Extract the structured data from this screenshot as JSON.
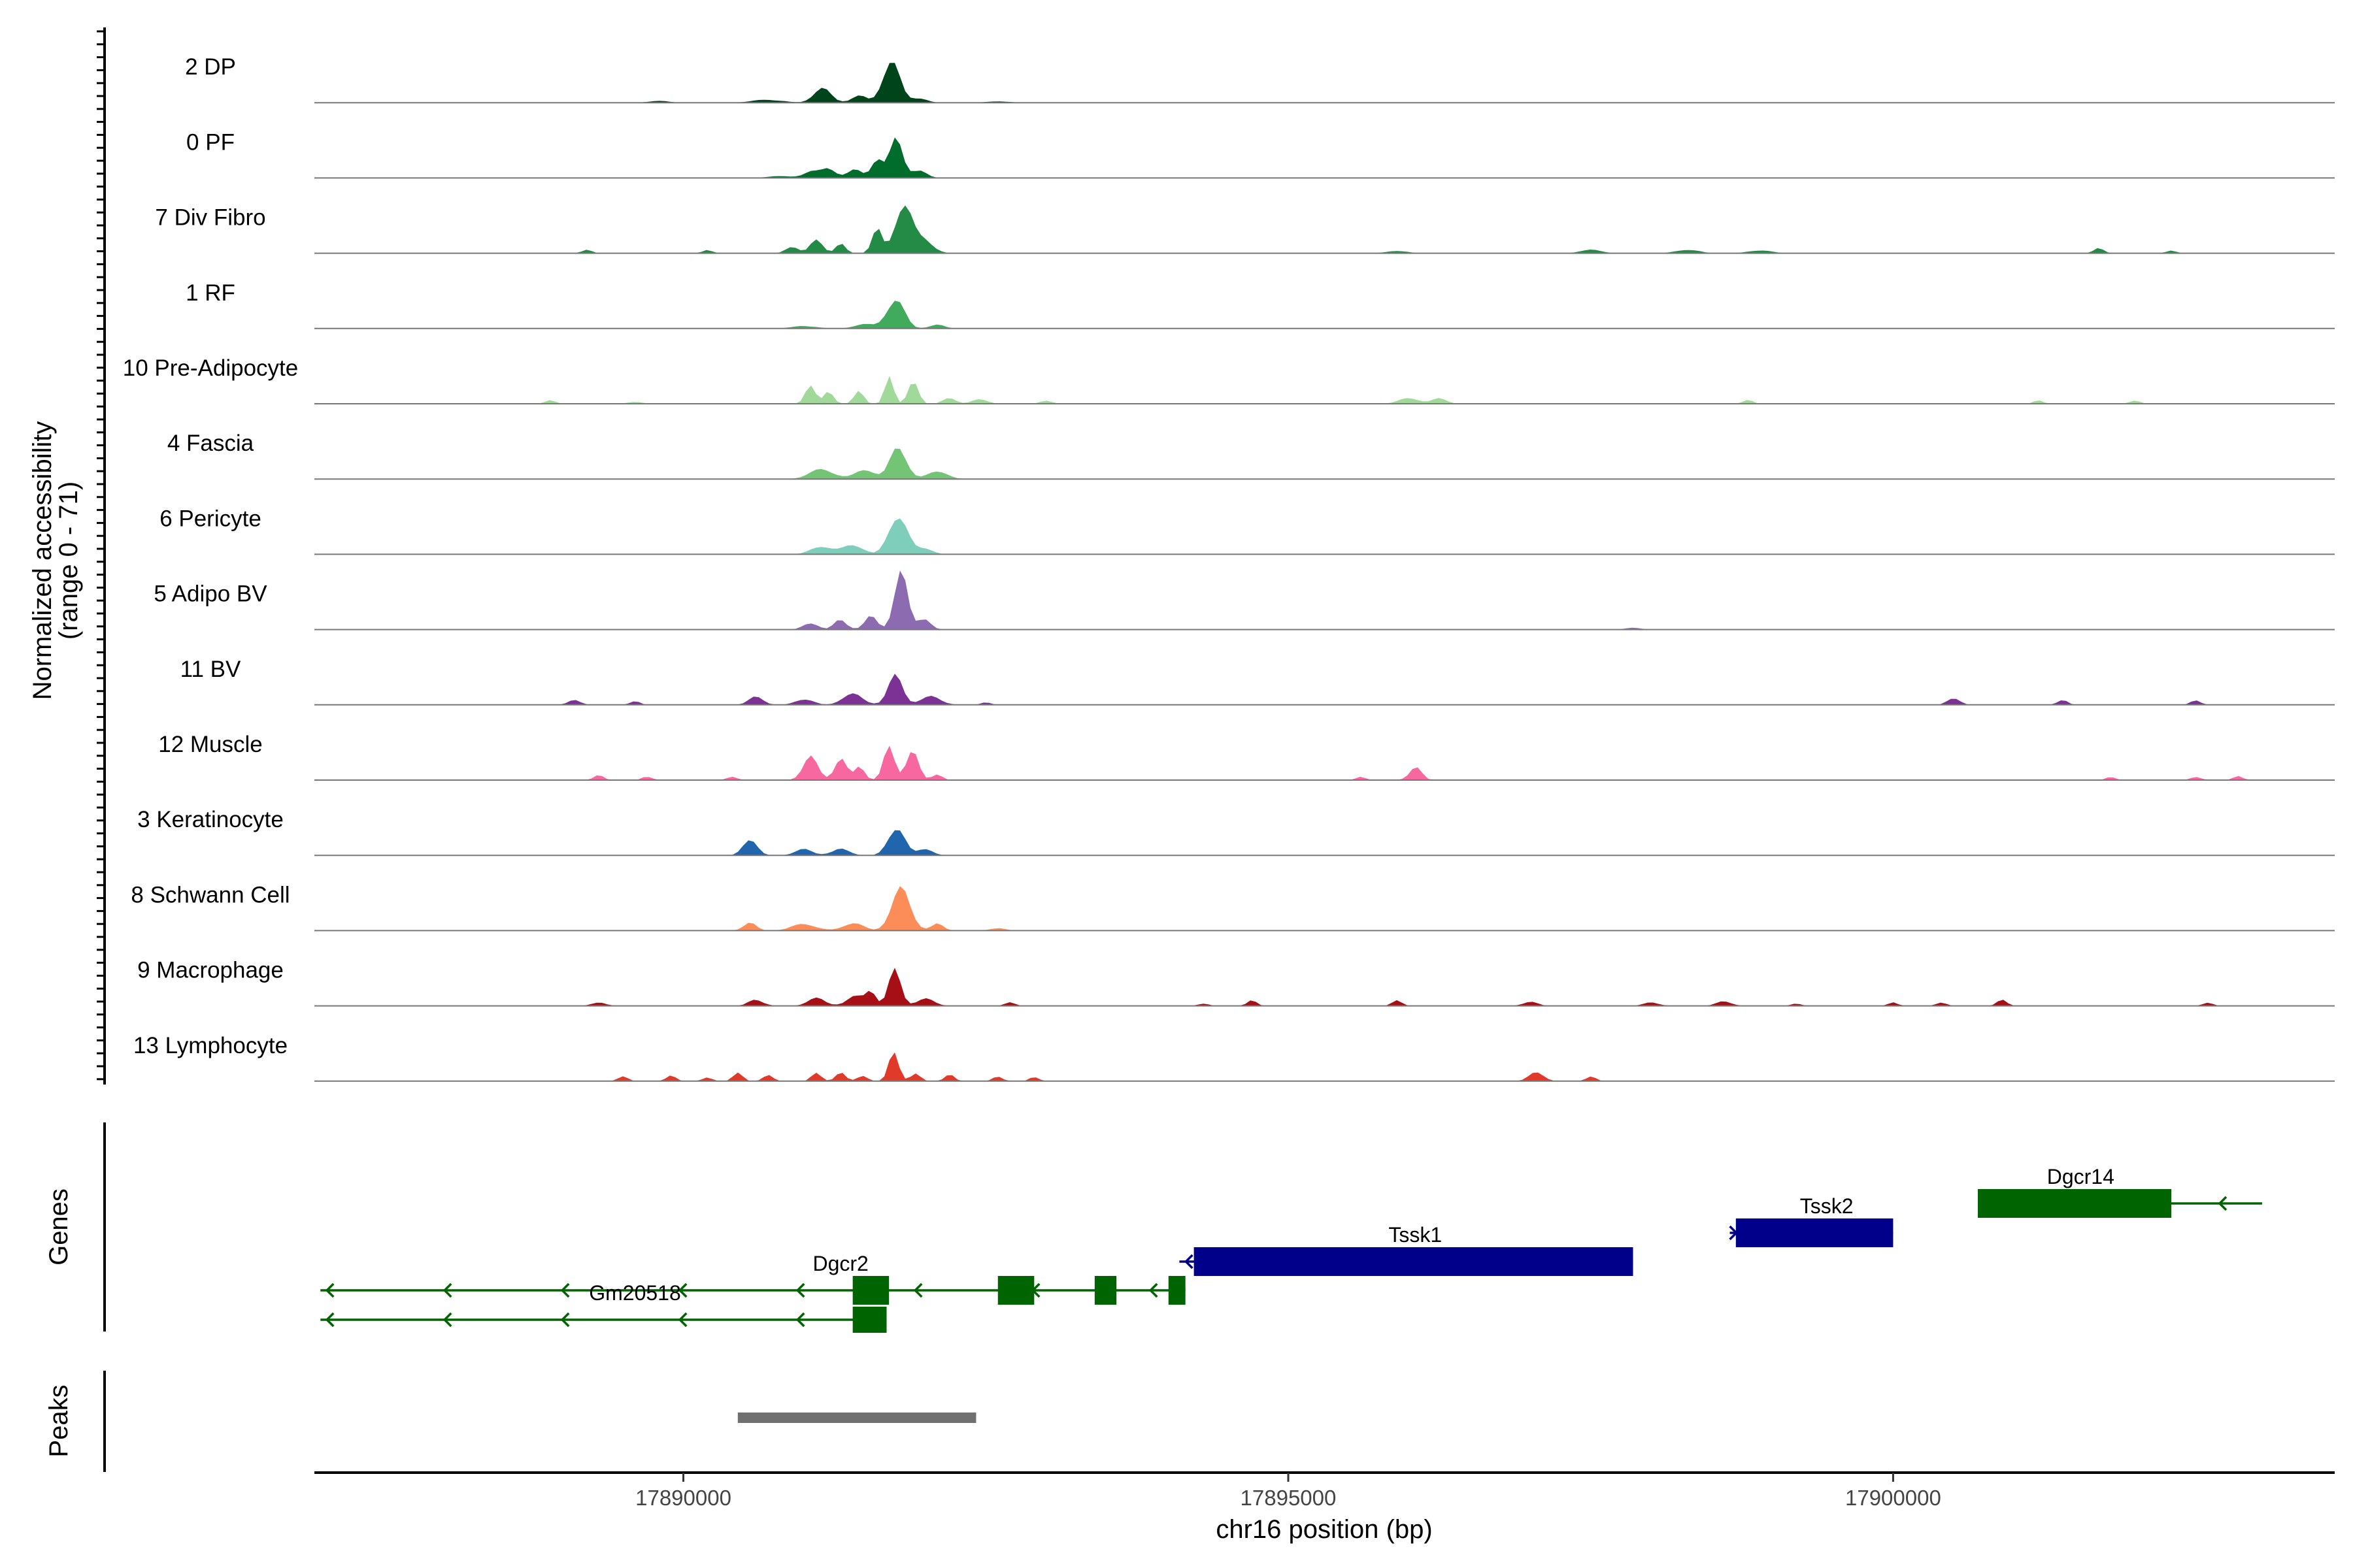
{
  "chart_data": {
    "type": "area",
    "title": "",
    "ylabel_line1": "Normalized accessibility",
    "ylabel_line2": "(range 0 - 71)",
    "y_range": [
      0,
      71
    ],
    "xlabel": "chr16 position (bp)",
    "xlim": [
      17886950,
      17903650
    ],
    "x_ticks": [
      17890000,
      17895000,
      17900000
    ],
    "x_tick_labels": [
      "17890000",
      "17895000",
      "17900000"
    ],
    "genes_label": "Genes",
    "peaks_label": "Peaks",
    "tracks": [
      {
        "name": "2 DP",
        "color": "#00441b",
        "peaks": [
          [
            17891150,
            0.22,
            70
          ],
          [
            17891450,
            0.12,
            60
          ],
          [
            17891720,
            0.62,
            70
          ],
          [
            17891950,
            0.08,
            60
          ],
          [
            17890700,
            0.05,
            120
          ],
          [
            17889800,
            0.03,
            80
          ],
          [
            17892600,
            0.02,
            100
          ]
        ]
      },
      {
        "name": "0 PF",
        "color": "#006d2c",
        "peaks": [
          [
            17891050,
            0.1,
            60
          ],
          [
            17891200,
            0.14,
            60
          ],
          [
            17891420,
            0.14,
            60
          ],
          [
            17891600,
            0.32,
            45
          ],
          [
            17891760,
            0.58,
            55
          ],
          [
            17891950,
            0.12,
            60
          ],
          [
            17890800,
            0.03,
            100
          ]
        ]
      },
      {
        "name": "7 Div Fibro",
        "color": "#238b45",
        "peaks": [
          [
            17890900,
            0.12,
            50
          ],
          [
            17891100,
            0.22,
            50
          ],
          [
            17891300,
            0.14,
            40
          ],
          [
            17891600,
            0.42,
            40
          ],
          [
            17891820,
            0.74,
            70
          ],
          [
            17892000,
            0.2,
            70
          ],
          [
            17889200,
            0.06,
            40
          ],
          [
            17890200,
            0.05,
            40
          ],
          [
            17897500,
            0.06,
            80
          ],
          [
            17898300,
            0.06,
            90
          ],
          [
            17898900,
            0.05,
            90
          ],
          [
            17901700,
            0.08,
            40
          ],
          [
            17902300,
            0.04,
            40
          ],
          [
            17895900,
            0.04,
            80
          ]
        ]
      },
      {
        "name": "1 RF",
        "color": "#41ab5d",
        "peaks": [
          [
            17891750,
            0.5,
            70
          ],
          [
            17891500,
            0.07,
            80
          ],
          [
            17891000,
            0.04,
            100
          ],
          [
            17892100,
            0.06,
            60
          ]
        ]
      },
      {
        "name": "10 Pre-Adipocyte",
        "color": "#a1d99b",
        "peaks": [
          [
            17891050,
            0.34,
            40
          ],
          [
            17891200,
            0.2,
            40
          ],
          [
            17891450,
            0.18,
            40
          ],
          [
            17891700,
            0.48,
            35
          ],
          [
            17891900,
            0.4,
            40
          ],
          [
            17892200,
            0.1,
            50
          ],
          [
            17892450,
            0.08,
            60
          ],
          [
            17888900,
            0.06,
            40
          ],
          [
            17896000,
            0.1,
            80
          ],
          [
            17896250,
            0.08,
            60
          ],
          [
            17893000,
            0.05,
            50
          ],
          [
            17898800,
            0.06,
            40
          ],
          [
            17901200,
            0.05,
            40
          ],
          [
            17902000,
            0.06,
            40
          ],
          [
            17889600,
            0.03,
            60
          ]
        ]
      },
      {
        "name": "4 Fascia",
        "color": "#74c476",
        "peaks": [
          [
            17891150,
            0.16,
            100
          ],
          [
            17891500,
            0.14,
            80
          ],
          [
            17891780,
            0.56,
            65
          ],
          [
            17892100,
            0.12,
            80
          ]
        ]
      },
      {
        "name": "6 Pericyte",
        "color": "#7fcdbb",
        "peaks": [
          [
            17891150,
            0.12,
            90
          ],
          [
            17891400,
            0.16,
            80
          ],
          [
            17891780,
            0.62,
            75
          ],
          [
            17892000,
            0.1,
            60
          ]
        ]
      },
      {
        "name": "5 Adipo BV",
        "color": "#8c6bb1",
        "peaks": [
          [
            17891050,
            0.1,
            60
          ],
          [
            17891300,
            0.16,
            50
          ],
          [
            17891550,
            0.22,
            50
          ],
          [
            17891800,
            0.84,
            55
          ],
          [
            17891990,
            0.2,
            50
          ],
          [
            17897850,
            0.03,
            60
          ]
        ]
      },
      {
        "name": "11 BV",
        "color": "#7b3294",
        "peaks": [
          [
            17890600,
            0.12,
            60
          ],
          [
            17891000,
            0.1,
            70
          ],
          [
            17891400,
            0.18,
            80
          ],
          [
            17891750,
            0.44,
            60
          ],
          [
            17892050,
            0.14,
            80
          ],
          [
            17889100,
            0.08,
            50
          ],
          [
            17889600,
            0.06,
            40
          ],
          [
            17892500,
            0.04,
            40
          ],
          [
            17900500,
            0.12,
            50
          ],
          [
            17901400,
            0.08,
            40
          ],
          [
            17902500,
            0.08,
            40
          ]
        ]
      },
      {
        "name": "12 Muscle",
        "color": "#f768a1",
        "peaks": [
          [
            17891050,
            0.4,
            60
          ],
          [
            17891300,
            0.32,
            50
          ],
          [
            17891460,
            0.22,
            40
          ],
          [
            17891700,
            0.56,
            45
          ],
          [
            17891890,
            0.44,
            50
          ],
          [
            17892100,
            0.1,
            40
          ],
          [
            17890400,
            0.06,
            40
          ],
          [
            17889300,
            0.08,
            40
          ],
          [
            17889700,
            0.06,
            40
          ],
          [
            17896050,
            0.2,
            50
          ],
          [
            17895600,
            0.05,
            40
          ],
          [
            17901800,
            0.05,
            40
          ],
          [
            17902500,
            0.06,
            40
          ],
          [
            17902850,
            0.06,
            40
          ]
        ]
      },
      {
        "name": "3 Keratinocyte",
        "color": "#2166ac",
        "peaks": [
          [
            17890550,
            0.3,
            55
          ],
          [
            17891000,
            0.1,
            70
          ],
          [
            17891300,
            0.1,
            70
          ],
          [
            17891760,
            0.5,
            65
          ],
          [
            17892000,
            0.1,
            60
          ]
        ]
      },
      {
        "name": "8 Schwann Cell",
        "color": "#fc8d59",
        "peaks": [
          [
            17890550,
            0.14,
            50
          ],
          [
            17891000,
            0.1,
            100
          ],
          [
            17891400,
            0.12,
            80
          ],
          [
            17891800,
            0.72,
            75
          ],
          [
            17892100,
            0.1,
            50
          ],
          [
            17892600,
            0.04,
            60
          ]
        ]
      },
      {
        "name": "9 Macrophage",
        "color": "#a50f15",
        "peaks": [
          [
            17890600,
            0.1,
            60
          ],
          [
            17891100,
            0.12,
            70
          ],
          [
            17891420,
            0.16,
            70
          ],
          [
            17891550,
            0.22,
            40
          ],
          [
            17891750,
            0.56,
            50
          ],
          [
            17892000,
            0.12,
            70
          ],
          [
            17892700,
            0.06,
            40
          ],
          [
            17889300,
            0.05,
            60
          ],
          [
            17895900,
            0.08,
            40
          ],
          [
            17897000,
            0.06,
            60
          ],
          [
            17898000,
            0.06,
            60
          ],
          [
            17898600,
            0.08,
            60
          ],
          [
            17899200,
            0.04,
            40
          ],
          [
            17900000,
            0.05,
            40
          ],
          [
            17900400,
            0.06,
            40
          ],
          [
            17900900,
            0.1,
            40
          ],
          [
            17902600,
            0.05,
            40
          ],
          [
            17894300,
            0.04,
            40
          ],
          [
            17894700,
            0.08,
            40
          ]
        ]
      },
      {
        "name": "13 Lymphocyte",
        "color": "#e03a2a",
        "peaks": [
          [
            17890450,
            0.12,
            40
          ],
          [
            17890700,
            0.1,
            40
          ],
          [
            17891100,
            0.12,
            40
          ],
          [
            17891300,
            0.14,
            40
          ],
          [
            17891480,
            0.1,
            40
          ],
          [
            17891740,
            0.46,
            40
          ],
          [
            17891920,
            0.12,
            40
          ],
          [
            17892200,
            0.1,
            40
          ],
          [
            17892600,
            0.08,
            40
          ],
          [
            17889500,
            0.08,
            40
          ],
          [
            17889900,
            0.08,
            40
          ],
          [
            17890200,
            0.06,
            40
          ],
          [
            17897050,
            0.14,
            60
          ],
          [
            17897500,
            0.08,
            40
          ],
          [
            17892900,
            0.06,
            40
          ]
        ]
      }
    ],
    "genes": [
      {
        "name": "Dgcr2",
        "strand": "-",
        "color": "#006400",
        "start": 17887000,
        "end": 17894150,
        "exons": [
          [
            17891400,
            17891700
          ],
          [
            17892600,
            17892900
          ],
          [
            17893400,
            17893580
          ],
          [
            17894010,
            17894150
          ]
        ]
      },
      {
        "name": "Gm20518",
        "strand": "-",
        "color": "#006400",
        "start": 17887000,
        "end": 17891680,
        "exons": [
          [
            17891400,
            17891680
          ]
        ]
      },
      {
        "name": "Tssk1",
        "strand": "-",
        "color": "#00008b",
        "start": 17894100,
        "end": 17897850,
        "exons": [
          [
            17894220,
            17897850
          ]
        ]
      },
      {
        "name": "Tssk2",
        "strand": "+",
        "color": "#00008b",
        "start": 17898650,
        "end": 17900000,
        "exons": [
          [
            17898700,
            17900000
          ]
        ]
      },
      {
        "name": "Dgcr14",
        "strand": "-",
        "color": "#006400",
        "start": 17900700,
        "end": 17903050,
        "exons": [
          [
            17900700,
            17902300
          ]
        ]
      }
    ],
    "peak_regions": [
      [
        17890450,
        17892420
      ]
    ]
  }
}
